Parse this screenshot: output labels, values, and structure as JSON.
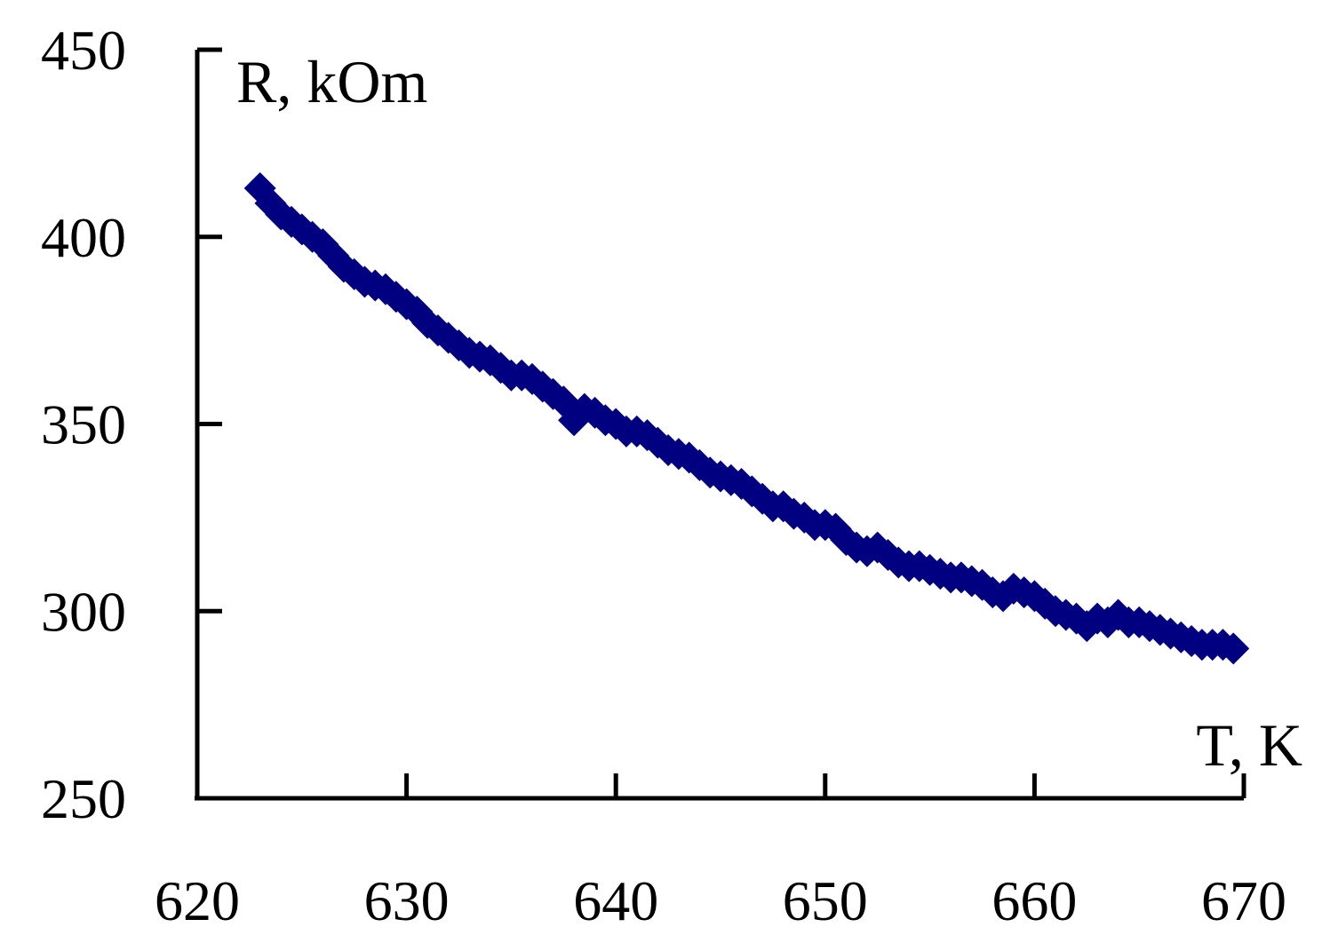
{
  "chart_data": {
    "type": "scatter",
    "title": "",
    "xlabel": "T, K",
    "ylabel": "R, kOm",
    "xlim": [
      620,
      670
    ],
    "ylim": [
      250,
      450
    ],
    "xticks": [
      "620",
      "630",
      "640",
      "650",
      "660",
      "670"
    ],
    "yticks": [
      "250",
      "300",
      "350",
      "400",
      "450"
    ],
    "grid": false,
    "marker": "diamond",
    "marker_color": "#000080",
    "series": [
      {
        "x": [
          623.0,
          623.5,
          624.0,
          624.5,
          625.0,
          625.5,
          626.0,
          626.5,
          627.0,
          627.5,
          628.0,
          628.5,
          629.0,
          629.5,
          630.0,
          630.5,
          631.0,
          631.5,
          632.0,
          632.5,
          633.0,
          633.5,
          634.0,
          634.5,
          635.0,
          635.5,
          636.0,
          636.5,
          637.0,
          637.5,
          638.0,
          638.5,
          639.0,
          639.5,
          640.0,
          640.5,
          641.0,
          641.5,
          642.0,
          642.5,
          643.0,
          643.5,
          644.0,
          644.5,
          645.0,
          645.5,
          646.0,
          646.5,
          647.0,
          647.5,
          648.0,
          648.5,
          649.0,
          649.5,
          650.0,
          650.5,
          651.0,
          651.5,
          652.0,
          652.5,
          653.0,
          653.5,
          654.0,
          654.5,
          655.0,
          655.5,
          656.0,
          656.5,
          657.0,
          657.5,
          658.0,
          658.5,
          659.0,
          659.5,
          660.0,
          660.5,
          661.0,
          661.5,
          662.0,
          662.5,
          663.0,
          663.5,
          664.0,
          664.5,
          665.0,
          665.5,
          666.0,
          666.5,
          667.0,
          667.5,
          668.0,
          668.5,
          669.0,
          669.5
        ],
        "y": [
          413,
          409,
          406,
          404,
          402,
          400,
          398,
          395,
          392,
          390,
          388,
          387,
          386,
          384,
          382,
          380,
          377,
          375,
          373,
          371,
          369,
          368,
          367,
          365,
          363,
          363,
          362,
          360,
          358,
          356,
          351,
          354,
          353,
          351,
          350,
          348,
          348,
          347,
          345,
          343,
          342,
          341,
          339,
          337,
          336,
          335,
          334,
          332,
          330,
          328,
          328,
          326,
          325,
          323,
          323,
          322,
          319,
          317,
          316,
          317,
          315,
          313,
          312,
          312,
          311,
          310,
          309,
          309,
          308,
          307,
          305,
          304,
          306,
          305,
          304,
          302,
          300,
          299,
          298,
          296,
          298,
          297,
          299,
          297,
          297,
          296,
          295,
          294,
          293,
          292,
          291,
          291,
          291,
          290
        ]
      }
    ]
  }
}
